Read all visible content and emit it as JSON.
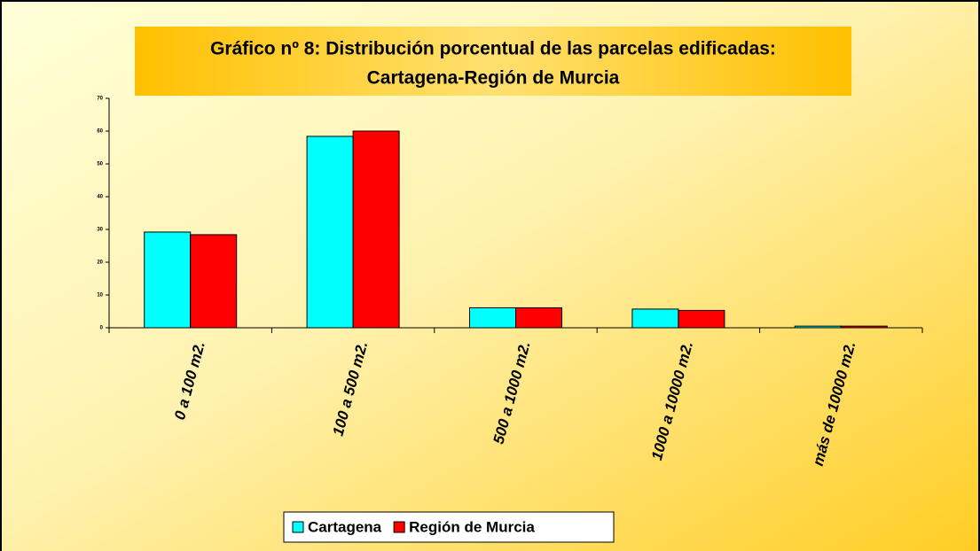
{
  "chart_data": {
    "type": "bar",
    "title": [
      "Gráfico nº 8: Distribución porcentual de las parcelas edificadas:",
      "Cartagena-Región de Murcia"
    ],
    "categories": [
      "0 a 100 m2.",
      "100 a 500 m2.",
      "500 a 1000 m2.",
      "1000 a 10000 m2.",
      "más de 10000 m2."
    ],
    "series": [
      {
        "name": "Cartagena",
        "color": "#00ffff",
        "values": [
          29.2,
          58.4,
          6.1,
          5.7,
          0.5
        ]
      },
      {
        "name": "Región de Murcia",
        "color": "#ff0000",
        "values": [
          28.4,
          60,
          6.1,
          5.3,
          0.5
        ]
      }
    ],
    "ylim": [
      0,
      70
    ],
    "yticks": [
      0,
      10,
      20,
      30,
      40,
      50,
      60,
      70
    ]
  }
}
